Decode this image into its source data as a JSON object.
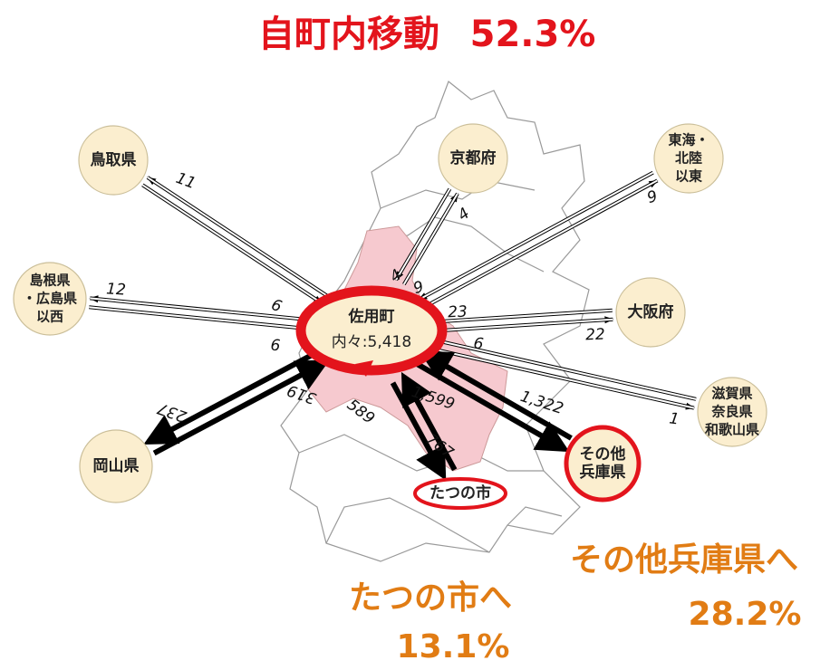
{
  "title": {
    "text": "自町内移動",
    "rate": "52.3%"
  },
  "center": {
    "name": "佐用町",
    "internal": "内々:5,418"
  },
  "nodes": [
    {
      "lines": [
        "鳥取県"
      ],
      "flow": [
        "11",
        "6"
      ]
    },
    {
      "lines": [
        "京都府"
      ],
      "flow": [
        "4",
        "4"
      ]
    },
    {
      "lines": [
        "東海・",
        "北陸",
        "以東"
      ],
      "flow": [
        "9",
        "9"
      ]
    },
    {
      "lines": [
        "島根県",
        "・広島県",
        "以西"
      ],
      "flow": [
        "12",
        "6"
      ]
    },
    {
      "lines": [
        "大阪府"
      ],
      "flow": [
        "22",
        "23"
      ]
    },
    {
      "lines": [
        "滋賀県",
        "奈良県",
        "和歌山県"
      ],
      "flow": [
        "1",
        "6"
      ]
    },
    {
      "lines": [
        "岡山県"
      ],
      "flow": [
        "237",
        "319"
      ]
    },
    {
      "lines": [
        "たつの市"
      ],
      "flow": [
        "767",
        "589"
      ]
    },
    {
      "lines": [
        "その他",
        "兵庫県"
      ],
      "flow": [
        "1,322",
        "1,599"
      ]
    }
  ],
  "callouts": [
    {
      "text": "たつの市へ",
      "rate": "13.1%"
    },
    {
      "text": "その他兵庫県へ",
      "rate": "28.2%"
    }
  ]
}
